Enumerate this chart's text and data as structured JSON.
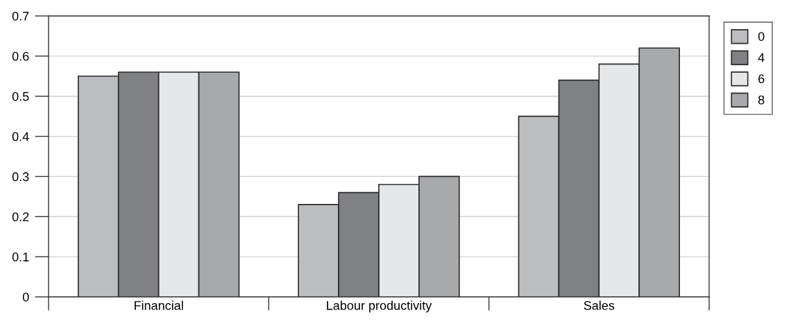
{
  "chart_data": {
    "type": "bar",
    "categories": [
      "Financial",
      "Labour productivity",
      "Sales"
    ],
    "series": [
      {
        "name": "0",
        "color": "#bcbdc0",
        "values": [
          0.55,
          0.23,
          0.45
        ]
      },
      {
        "name": "4",
        "color": "#808184",
        "values": [
          0.56,
          0.26,
          0.54
        ]
      },
      {
        "name": "6",
        "color": "#e6e7e8",
        "values": [
          0.56,
          0.28,
          0.58
        ]
      },
      {
        "name": "8",
        "color": "#a7a9ac",
        "values": [
          0.56,
          0.3,
          0.62
        ]
      }
    ],
    "ylim": [
      0,
      0.7
    ],
    "yticks": [
      0,
      0.1,
      0.2,
      0.3,
      0.4,
      0.5,
      0.6,
      0.7
    ],
    "grid": "y",
    "legend": "top right"
  }
}
